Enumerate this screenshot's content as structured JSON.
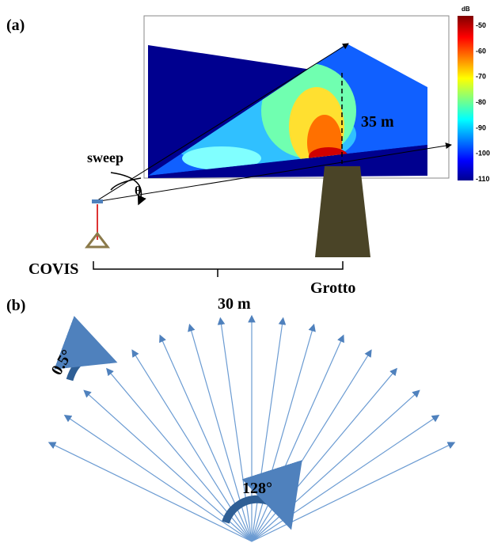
{
  "panel_a": {
    "label": "(a)",
    "sweep": "sweep",
    "angle": "θ",
    "height": "35 m",
    "left": "COVIS",
    "right": "Grotto",
    "distance": "30 m",
    "colorbar": {
      "unit": "dB",
      "ticks": [
        -50,
        -60,
        -70,
        -80,
        -90,
        -100,
        -110
      ]
    }
  },
  "panel_b": {
    "label": "(b)",
    "step": "0.5°",
    "span": "128°"
  }
}
